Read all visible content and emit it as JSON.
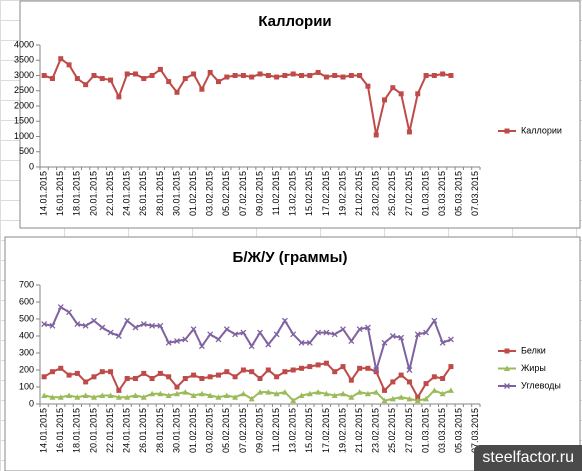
{
  "chart_data": [
    {
      "type": "line",
      "title": "Каллории",
      "legend": "right",
      "categories": [
        "14.01.2015",
        null,
        "16.01.2015",
        null,
        "18.01.2015",
        null,
        "20.01.2015",
        null,
        "22.01.2015",
        null,
        "24.01.2015",
        null,
        "26.01.2015",
        null,
        "28.01.2015",
        null,
        "30.01.2015",
        null,
        "01.02.2015",
        null,
        "03.02.2015",
        null,
        "05.02.2015",
        null,
        "07.02.2015",
        null,
        "09.02.2015",
        null,
        "11.02.2015",
        null,
        "13.02.2015",
        null,
        "15.02.2015",
        null,
        "17.02.2015",
        null,
        "19.02.2015",
        null,
        "21.02.2015",
        null,
        "23.02.2015",
        null,
        "25.02.2015",
        null,
        "27.02.2015",
        null,
        "01.03.2015",
        null,
        "03.03.2015",
        null,
        "05.03.2015",
        null,
        "07.03.2015"
      ],
      "series": [
        {
          "name": "Каллории",
          "color": "#be4b48",
          "marker": "square",
          "values": [
            3000,
            2900,
            3550,
            3350,
            2900,
            2700,
            3000,
            2900,
            2850,
            2300,
            3050,
            3050,
            2900,
            3000,
            3200,
            2800,
            2450,
            2900,
            3050,
            2550,
            3100,
            2800,
            2950,
            3000,
            3000,
            2950,
            3050,
            3000,
            2950,
            3000,
            3050,
            3000,
            3000,
            3100,
            2950,
            3000,
            2950,
            3000,
            3000,
            2650,
            1050,
            2200,
            2600,
            2400,
            1150,
            2400,
            3000,
            3000,
            3050,
            3000,
            null,
            null,
            null
          ]
        }
      ],
      "ylim": [
        0,
        4000
      ],
      "yticks": [
        0,
        500,
        1000,
        1500,
        2000,
        2500,
        3000,
        3500,
        4000
      ]
    },
    {
      "type": "line",
      "title": "Б/Ж/У (граммы)",
      "legend": "right",
      "categories": [
        "14.01.2015",
        null,
        "16.01.2015",
        null,
        "18.01.2015",
        null,
        "20.01.2015",
        null,
        "22.01.2015",
        null,
        "24.01.2015",
        null,
        "26.01.2015",
        null,
        "28.01.2015",
        null,
        "30.01.2015",
        null,
        "01.02.2015",
        null,
        "03.02.2015",
        null,
        "05.02.2015",
        null,
        "07.02.2015",
        null,
        "09.02.2015",
        null,
        "11.02.2015",
        null,
        "13.02.2015",
        null,
        "15.02.2015",
        null,
        "17.02.2015",
        null,
        "19.02.2015",
        null,
        "21.02.2015",
        null,
        "23.02.2015",
        null,
        "25.02.2015",
        null,
        "27.02.2015",
        null,
        "01.03.2015",
        null,
        "03.03.2015",
        null,
        "05.03.2015",
        null,
        "07.03.2015"
      ],
      "series": [
        {
          "name": "Белки",
          "color": "#be4b48",
          "marker": "square",
          "values": [
            160,
            190,
            210,
            170,
            180,
            130,
            160,
            190,
            190,
            80,
            150,
            150,
            180,
            150,
            180,
            160,
            100,
            150,
            170,
            150,
            160,
            170,
            190,
            160,
            200,
            190,
            150,
            200,
            160,
            190,
            200,
            210,
            220,
            230,
            240,
            190,
            220,
            140,
            210,
            210,
            190,
            80,
            130,
            170,
            130,
            40,
            120,
            160,
            150,
            220,
            null,
            null,
            null
          ]
        },
        {
          "name": "Жиры",
          "color": "#9bbb59",
          "marker": "triangle",
          "values": [
            50,
            40,
            40,
            50,
            40,
            50,
            40,
            50,
            50,
            40,
            40,
            50,
            40,
            60,
            60,
            50,
            60,
            70,
            50,
            60,
            50,
            40,
            50,
            40,
            60,
            30,
            70,
            70,
            60,
            70,
            20,
            50,
            60,
            70,
            60,
            50,
            60,
            40,
            70,
            60,
            70,
            20,
            30,
            40,
            30,
            20,
            30,
            80,
            60,
            80,
            null,
            null,
            null
          ]
        },
        {
          "name": "Углеводы",
          "color": "#7f62a0",
          "marker": "x",
          "values": [
            470,
            460,
            570,
            540,
            470,
            460,
            490,
            450,
            420,
            400,
            490,
            450,
            470,
            460,
            460,
            360,
            370,
            380,
            440,
            340,
            410,
            380,
            440,
            410,
            420,
            340,
            420,
            350,
            410,
            490,
            410,
            360,
            360,
            420,
            420,
            410,
            440,
            370,
            440,
            450,
            200,
            360,
            400,
            390,
            200,
            410,
            420,
            490,
            360,
            380,
            null,
            null,
            null
          ]
        }
      ],
      "ylim": [
        0,
        700
      ],
      "yticks": [
        0,
        100,
        200,
        300,
        400,
        500,
        600,
        700
      ]
    }
  ],
  "watermark": "steelfactor.ru"
}
